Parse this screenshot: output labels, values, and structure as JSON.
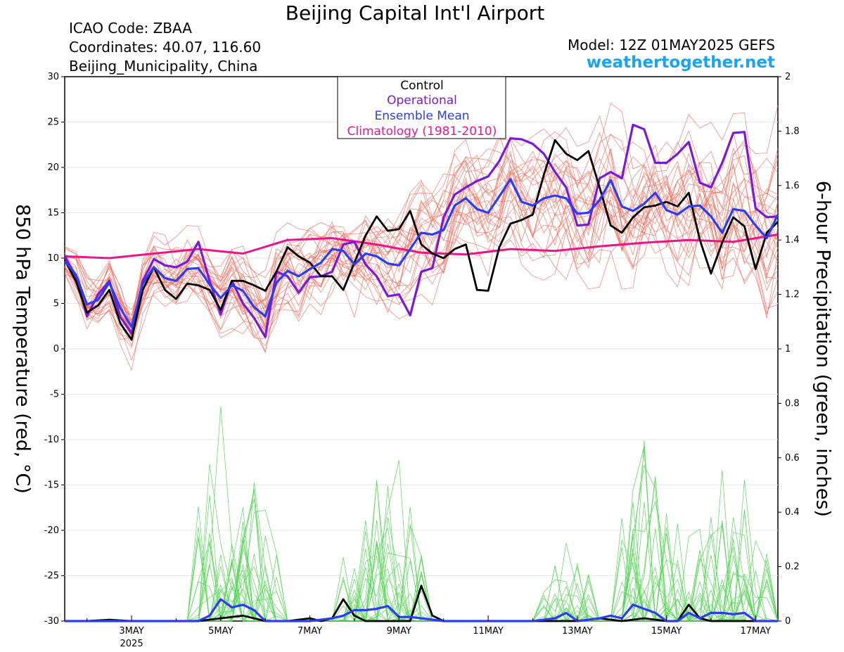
{
  "header": {
    "title": "Beijing Capital Int'l Airport",
    "icao": "ICAO Code: ZBAA",
    "coords": "Coordinates: 40.07, 116.60",
    "region": "Beijing_Municipality, China",
    "model": "Model: 12Z 01MAY2025 GEFS",
    "site": "weathertogether.net"
  },
  "colors": {
    "control": "#000000",
    "operational": "#7a1ad6",
    "ensemble_mean": "#2a3ef0",
    "climatology": "#e8168a",
    "members_temp": "#f26a5a",
    "members_precip": "#5ad65a",
    "site": "#1aa3f2"
  },
  "chart_data": {
    "type": "line",
    "xlabel": "",
    "ylabel": "850 hPa Temperature (red, °C)",
    "ylabel2": "6-hour Precipitation (green, inches)",
    "ylim": [
      -30,
      30
    ],
    "ylim2": [
      0,
      2
    ],
    "yticks": [
      "30",
      "25",
      "20",
      "15",
      "10",
      "5",
      "0",
      "-5",
      "-10",
      "-15",
      "-20",
      "-25",
      "-30"
    ],
    "yticks2": [
      "2",
      "1.8",
      "1.6",
      "1.4",
      "1.2",
      "1",
      "0.8",
      "0.6",
      "0.4",
      "0.2",
      "0"
    ],
    "xlim": [
      1.5,
      17.5
    ],
    "xticks": [
      {
        "day": 3,
        "label": "3MAY",
        "sub": "2025"
      },
      {
        "day": 5,
        "label": "5MAY",
        "sub": ""
      },
      {
        "day": 7,
        "label": "7MAY",
        "sub": ""
      },
      {
        "day": 9,
        "label": "9MAY",
        "sub": ""
      },
      {
        "day": 11,
        "label": "11MAY",
        "sub": ""
      },
      {
        "day": 13,
        "label": "13MAY",
        "sub": ""
      },
      {
        "day": 15,
        "label": "15MAY",
        "sub": ""
      },
      {
        "day": 17,
        "label": "17MAY",
        "sub": ""
      }
    ],
    "legend": [
      "Control",
      "Operational",
      "Ensemble Mean",
      "Climatology (1981-2010)"
    ],
    "legend_position": "top-center",
    "series": [
      {
        "name": "Control",
        "axis": "temp",
        "x": [
          1.5,
          1.75,
          2.0,
          2.25,
          2.5,
          2.75,
          3.0,
          3.25,
          3.5,
          3.75,
          4.0,
          4.25,
          4.5,
          4.75,
          5.0,
          5.25,
          5.5,
          5.75,
          6.0,
          6.25,
          6.5,
          6.75,
          7.0,
          7.25,
          7.5,
          7.75,
          8.0,
          8.25,
          8.5,
          8.75,
          9.0,
          9.25,
          9.5,
          9.75,
          10.0,
          10.25,
          10.5,
          10.75,
          11.0,
          11.25,
          11.5,
          11.75,
          12.0,
          12.25,
          12.5,
          12.75,
          13.0,
          13.25,
          13.5,
          13.75,
          14.0,
          14.25,
          14.5,
          14.75,
          15.0,
          15.25,
          15.5,
          15.75,
          16.0,
          16.25,
          16.5,
          16.75,
          17.0,
          17.25,
          17.5
        ],
        "values": [
          9.8,
          7.5,
          4.0,
          4.8,
          6.5,
          2.8,
          1.0,
          6.5,
          9.0,
          6.5,
          5.5,
          7.2,
          7.0,
          6.5,
          4.3,
          7.5,
          7.5,
          7.0,
          6.4,
          8.5,
          11.2,
          10.2,
          9.5,
          8.0,
          8.0,
          6.5,
          9.5,
          12.5,
          14.6,
          13.0,
          13.2,
          15.2,
          11.5,
          10.5,
          10.0,
          11.0,
          11.5,
          6.5,
          6.4,
          11.2,
          13.8,
          14.2,
          14.8,
          19.2,
          23.0,
          21.5,
          20.8,
          21.8,
          17.8,
          13.6,
          12.8,
          14.5,
          15.6,
          15.8,
          16.2,
          15.7,
          17.2,
          12.0,
          8.3,
          11.7,
          14.5,
          13.5,
          8.8,
          12.8,
          14.0
        ]
      },
      {
        "name": "Operational",
        "axis": "temp",
        "x": [
          1.5,
          1.75,
          2.0,
          2.25,
          2.5,
          2.75,
          3.0,
          3.25,
          3.5,
          3.75,
          4.0,
          4.25,
          4.5,
          4.75,
          5.0,
          5.25,
          5.5,
          5.75,
          6.0,
          6.25,
          6.5,
          6.75,
          7.0,
          7.25,
          7.5,
          7.75,
          8.0,
          8.25,
          8.5,
          8.75,
          9.0,
          9.25,
          9.5,
          9.75,
          10.0,
          10.25,
          10.5,
          10.75,
          11.0,
          11.25,
          11.5,
          11.75,
          12.0,
          12.25,
          12.5,
          12.75,
          13.0,
          13.25,
          13.5,
          13.75,
          14.0,
          14.25,
          14.5,
          14.75,
          15.0,
          15.25,
          15.5,
          15.75,
          16.0,
          16.25,
          16.5,
          16.75,
          17.0,
          17.25,
          17.5
        ],
        "values": [
          10.2,
          8.0,
          3.6,
          6.0,
          7.5,
          3.5,
          1.7,
          7.5,
          9.9,
          9.2,
          9.0,
          9.6,
          11.8,
          7.5,
          3.8,
          7.5,
          5.0,
          3.4,
          1.3,
          8.5,
          8.0,
          6.2,
          7.9,
          8.0,
          8.5,
          11.5,
          11.8,
          9.3,
          8.0,
          5.8,
          6.0,
          3.7,
          8.5,
          8.9,
          14.5,
          17.0,
          17.8,
          18.5,
          19.0,
          20.7,
          23.2,
          23.1,
          22.6,
          21.5,
          19.5,
          17.8,
          13.6,
          13.7,
          18.8,
          19.5,
          18.8,
          24.7,
          24.2,
          20.5,
          20.5,
          21.5,
          22.8,
          18.3,
          17.8,
          20.5,
          23.8,
          23.9,
          15.5,
          14.5,
          14.6
        ]
      },
      {
        "name": "Ensemble Mean",
        "axis": "temp",
        "x": [
          1.5,
          1.75,
          2.0,
          2.25,
          2.5,
          2.75,
          3.0,
          3.25,
          3.5,
          3.75,
          4.0,
          4.25,
          4.5,
          4.75,
          5.0,
          5.25,
          5.5,
          5.75,
          6.0,
          6.25,
          6.5,
          6.75,
          7.0,
          7.25,
          7.5,
          7.75,
          8.0,
          8.25,
          8.5,
          8.75,
          9.0,
          9.25,
          9.5,
          9.75,
          10.0,
          10.25,
          10.5,
          10.75,
          11.0,
          11.25,
          11.5,
          11.75,
          12.0,
          12.25,
          12.5,
          12.75,
          13.0,
          13.25,
          13.5,
          13.75,
          14.0,
          14.25,
          14.5,
          14.75,
          15.0,
          15.25,
          15.5,
          15.75,
          16.0,
          16.25,
          16.5,
          16.75,
          17.0,
          17.25,
          17.5
        ],
        "values": [
          9.7,
          8.2,
          4.9,
          5.4,
          7.3,
          4.5,
          2.4,
          7.2,
          9.0,
          7.8,
          7.5,
          8.8,
          8.9,
          7.1,
          5.6,
          7.0,
          6.4,
          4.6,
          3.6,
          7.3,
          8.6,
          8.0,
          8.8,
          9.5,
          11.0,
          10.8,
          9.3,
          10.5,
          10.2,
          9.4,
          9.2,
          11.0,
          12.8,
          12.6,
          13.1,
          15.8,
          16.6,
          15.4,
          15.0,
          16.8,
          18.7,
          16.2,
          15.8,
          16.6,
          16.9,
          16.6,
          14.9,
          15.0,
          16.4,
          18.6,
          15.7,
          15.2,
          16.0,
          17.2,
          15.3,
          14.8,
          15.7,
          15.8,
          14.6,
          12.8,
          15.4,
          15.2,
          13.6,
          12.2,
          14.8
        ]
      },
      {
        "name": "Climatology (1981-2010)",
        "axis": "temp",
        "x": [
          1.5,
          2.5,
          3.5,
          4.5,
          5.5,
          6.5,
          7.5,
          8.5,
          9.5,
          10.5,
          11.5,
          12.5,
          13.5,
          14.5,
          15.5,
          16.5,
          17.5
        ],
        "values": [
          10.2,
          10.0,
          10.5,
          11.0,
          10.5,
          12.0,
          12.2,
          11.5,
          10.6,
          10.4,
          11.0,
          10.8,
          11.3,
          11.7,
          12.0,
          11.8,
          12.6
        ]
      },
      {
        "name": "Control",
        "axis": "precip",
        "x": [
          1.5,
          2.0,
          2.5,
          3.0,
          3.5,
          4.0,
          4.5,
          5.0,
          5.5,
          6.0,
          6.5,
          7.0,
          7.25,
          7.5,
          7.75,
          8.0,
          8.25,
          8.5,
          9.0,
          9.25,
          9.5,
          9.75,
          10.0,
          10.5,
          11.0,
          11.5,
          12.0,
          12.5,
          13.0,
          13.5,
          14.0,
          14.5,
          15.0,
          15.25,
          15.5,
          15.75,
          16.0,
          16.5,
          17.0,
          17.5
        ],
        "values": [
          0,
          0,
          0.005,
          0,
          0,
          0,
          0,
          0.01,
          0.02,
          0,
          0,
          0.01,
          0,
          0.01,
          0.08,
          0.02,
          0,
          0,
          0,
          0,
          0.13,
          0.02,
          0,
          0,
          0,
          0,
          0,
          0,
          0,
          0.01,
          0,
          0.01,
          0,
          0,
          0.06,
          0.01,
          0,
          0,
          0,
          0
        ]
      },
      {
        "name": "Ensemble Mean",
        "axis": "precip",
        "x": [
          1.5,
          2.0,
          2.5,
          3.0,
          3.5,
          4.0,
          4.5,
          4.75,
          5.0,
          5.25,
          5.5,
          5.75,
          6.0,
          6.5,
          7.0,
          7.5,
          7.75,
          8.0,
          8.25,
          8.5,
          8.75,
          9.0,
          9.25,
          9.5,
          10.0,
          10.5,
          11.0,
          11.5,
          12.0,
          12.5,
          12.75,
          13.0,
          13.5,
          13.75,
          14.0,
          14.25,
          14.5,
          14.75,
          15.0,
          15.25,
          15.5,
          15.75,
          16.0,
          16.25,
          16.5,
          16.75,
          17.0,
          17.5
        ],
        "values": [
          0,
          0,
          0,
          0,
          0,
          0,
          0,
          0.02,
          0.08,
          0.05,
          0.06,
          0.04,
          0,
          0,
          0,
          0.01,
          0.02,
          0.04,
          0.04,
          0.045,
          0.055,
          0.015,
          0.015,
          0.01,
          0,
          0,
          0,
          0,
          0,
          0.01,
          0.03,
          0,
          0.01,
          0.02,
          0.01,
          0.06,
          0.045,
          0.03,
          0,
          0,
          0.03,
          0.01,
          0.03,
          0.03,
          0.025,
          0.03,
          0,
          0
        ]
      }
    ]
  }
}
